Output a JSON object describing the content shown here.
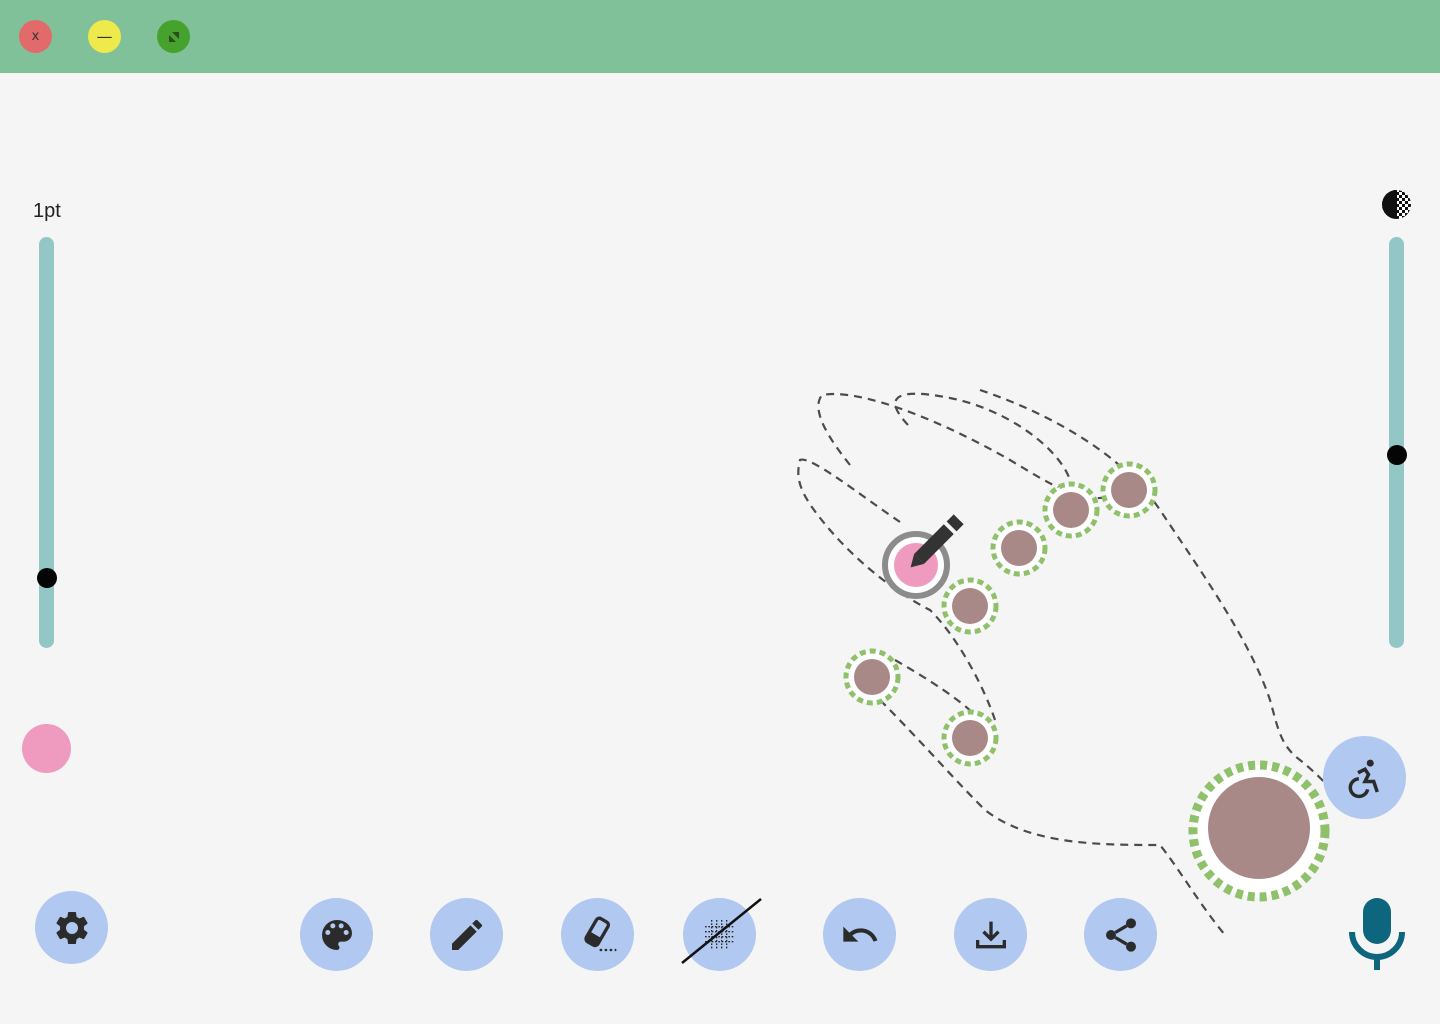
{
  "pen_size": {
    "label": "1pt",
    "level": 0.83
  },
  "opacity": {
    "level": 0.53
  },
  "current_color": "#ef9abf",
  "colors": {
    "titlebar": "#80c19a",
    "slider_track": "#93c7c6",
    "tool_button": "#b1c8f1",
    "node_fill": "#a98888",
    "node_ring": "#8fc06a",
    "mic": "#0e667e"
  },
  "window_controls": {
    "close_glyph": "x",
    "minimize_glyph": "—"
  },
  "icons": {
    "settings": "gear-icon",
    "palette": "palette-icon",
    "pen": "pencil-icon",
    "eraser": "eraser-icon",
    "grid": "grid-off-icon",
    "undo": "undo-icon",
    "download": "download-icon",
    "share": "share-icon",
    "accessibility": "accessibility-icon",
    "microphone": "microphone-icon",
    "opacity": "opacity-icon"
  }
}
